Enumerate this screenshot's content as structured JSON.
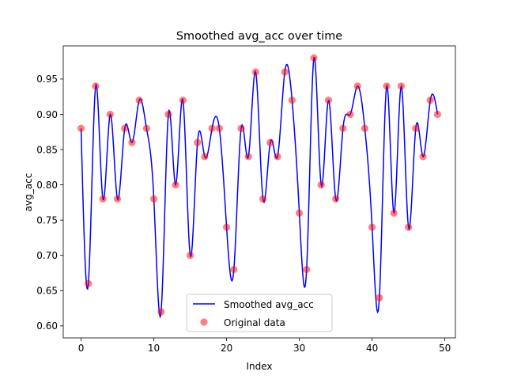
{
  "chart_data": {
    "type": "line",
    "title": "Smoothed avg_acc over time",
    "xlabel": "Index",
    "ylabel": "avg_acc",
    "xlim": [
      -2.45,
      51.45
    ],
    "ylim": [
      0.583,
      0.997
    ],
    "x_ticks": [
      0,
      10,
      20,
      30,
      40,
      50
    ],
    "y_ticks": [
      0.6,
      0.65,
      0.7,
      0.75,
      0.8,
      0.85,
      0.9,
      0.95
    ],
    "grid": false,
    "legend_position": "lower center",
    "series": [
      {
        "name": "Smoothed avg_acc",
        "kind": "line",
        "color": "#0000ff",
        "note": "cubic spline interpolation through the original data points"
      },
      {
        "name": "Original data",
        "kind": "scatter",
        "color": "#ff0000",
        "alpha": 0.5,
        "x": [
          0,
          1,
          2,
          3,
          4,
          5,
          6,
          7,
          8,
          9,
          10,
          11,
          12,
          13,
          14,
          15,
          16,
          17,
          18,
          19,
          20,
          21,
          22,
          23,
          24,
          25,
          26,
          27,
          28,
          29,
          30,
          31,
          32,
          33,
          34,
          35,
          36,
          37,
          38,
          39,
          40,
          41,
          42,
          43,
          44,
          45,
          46,
          47,
          48,
          49
        ],
        "y": [
          0.88,
          0.66,
          0.94,
          0.78,
          0.9,
          0.78,
          0.88,
          0.86,
          0.92,
          0.88,
          0.78,
          0.62,
          0.9,
          0.8,
          0.92,
          0.7,
          0.86,
          0.84,
          0.88,
          0.88,
          0.74,
          0.68,
          0.88,
          0.84,
          0.96,
          0.78,
          0.86,
          0.84,
          0.96,
          0.92,
          0.76,
          0.68,
          0.98,
          0.8,
          0.92,
          0.78,
          0.88,
          0.9,
          0.94,
          0.88,
          0.74,
          0.64,
          0.94,
          0.76,
          0.94,
          0.74,
          0.88,
          0.84,
          0.92,
          0.9
        ]
      }
    ],
    "legend": [
      {
        "label": "Smoothed avg_acc",
        "marker": "line",
        "color": "#0000ff"
      },
      {
        "label": "Original data",
        "marker": "dot",
        "color": "#ff0000"
      }
    ]
  }
}
